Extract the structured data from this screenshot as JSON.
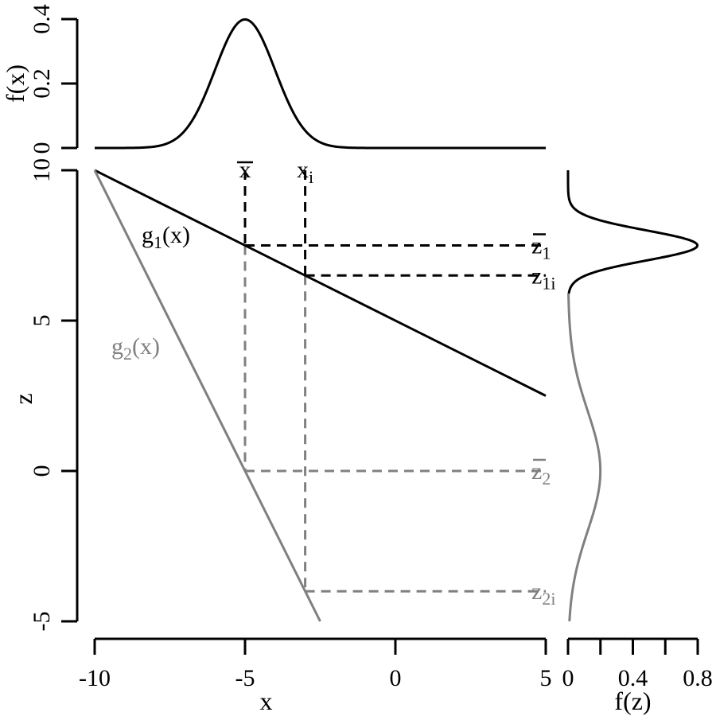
{
  "chart_data": {
    "type": "line",
    "colors": {
      "primary": "#000000",
      "secondary": "#808080"
    },
    "main_panel": {
      "xlabel": "x",
      "ylabel": "z",
      "xlim": [
        -10,
        5
      ],
      "ylim": [
        -5,
        10
      ],
      "xticks": [
        -10,
        -5,
        0,
        5
      ],
      "xtick_labels": [
        "-10",
        "-5",
        "0",
        "5"
      ],
      "yticks": [
        -5,
        0,
        5,
        10
      ],
      "ytick_labels": [
        "-5",
        "0",
        "5",
        "10"
      ],
      "series": [
        {
          "label": {
            "main": "g",
            "sub": "1",
            "rest": "(x)"
          },
          "color": "#000000",
          "x": [
            -10,
            5
          ],
          "y": [
            10,
            2.5
          ]
        },
        {
          "label": {
            "main": "g",
            "sub": "2",
            "rest": "(x)"
          },
          "color": "#808080",
          "x": [
            -10,
            -2.5
          ],
          "y": [
            10,
            -5
          ]
        }
      ],
      "x_markers": [
        {
          "label": {
            "main": "x",
            "sub": "",
            "overline": true
          },
          "x": -5
        },
        {
          "label": {
            "main": "x",
            "sub": "i",
            "overline": false
          },
          "x": -3
        }
      ],
      "guide_lines": [
        {
          "from": [
            -5,
            10
          ],
          "to": [
            -5,
            7.5
          ],
          "color": "#000000"
        },
        {
          "from": [
            -3,
            10
          ],
          "to": [
            -3,
            6.5
          ],
          "color": "#000000"
        },
        {
          "from": [
            -5,
            7.5
          ],
          "to": [
            5,
            7.5
          ],
          "color": "#000000"
        },
        {
          "from": [
            -3,
            6.5
          ],
          "to": [
            5,
            6.5
          ],
          "color": "#000000"
        },
        {
          "from": [
            -5,
            7.5
          ],
          "to": [
            -5,
            0
          ],
          "color": "#808080"
        },
        {
          "from": [
            -3,
            6.5
          ],
          "to": [
            -3,
            -4
          ],
          "color": "#808080"
        },
        {
          "from": [
            -5,
            0
          ],
          "to": [
            5,
            0
          ],
          "color": "#808080"
        },
        {
          "from": [
            -3,
            -4
          ],
          "to": [
            5,
            -4
          ],
          "color": "#808080"
        }
      ],
      "z_markers": [
        {
          "label": {
            "main": "z",
            "sub": "1",
            "overline": true
          },
          "z": 7.5,
          "color": "#000000"
        },
        {
          "label": {
            "main": "z",
            "sub": "1i",
            "overline": false
          },
          "z": 6.5,
          "color": "#000000"
        },
        {
          "label": {
            "main": "z",
            "sub": "2",
            "overline": true
          },
          "z": 0,
          "color": "#808080"
        },
        {
          "label": {
            "main": "z",
            "sub": "2i",
            "overline": false
          },
          "z": -4,
          "color": "#808080"
        }
      ]
    },
    "top_panel": {
      "ylabel": "f(x)",
      "xlim": [
        -10,
        5
      ],
      "ylim": [
        0,
        0.4
      ],
      "yticks": [
        0,
        0.2,
        0.4
      ],
      "ytick_labels": [
        "0",
        "0.2",
        "0.4"
      ],
      "density": {
        "type": "normal",
        "mean": -5,
        "sd": 1,
        "x_range": [
          -10,
          5
        ],
        "color": "#000000"
      }
    },
    "right_panel": {
      "xlabel": "f(z)",
      "xlim": [
        0,
        0.8
      ],
      "xticks": [
        0,
        0.2,
        0.4,
        0.6,
        0.8
      ],
      "xtick_labels": [
        "0",
        "",
        "0.4",
        "",
        "0.8"
      ],
      "ylim": [
        -5,
        10
      ],
      "densities": [
        {
          "type": "normal",
          "mean": 7.5,
          "sd": 0.5,
          "z_range": [
            5.9,
            10
          ],
          "color": "#000000"
        },
        {
          "type": "normal",
          "mean": 0,
          "sd": 2,
          "z_range": [
            -5,
            5.9
          ],
          "color": "#808080"
        }
      ]
    }
  }
}
